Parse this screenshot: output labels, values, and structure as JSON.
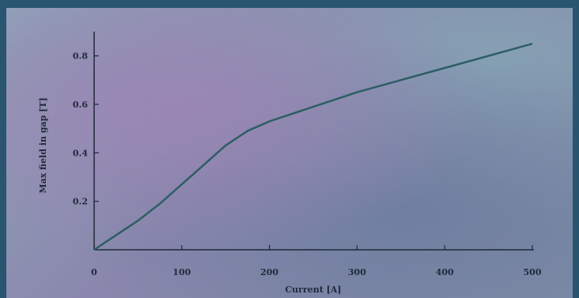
{
  "chart_data": {
    "type": "line",
    "xlabel": "Current [A]",
    "ylabel": "Max field in gap [T]",
    "xlim": [
      0,
      500
    ],
    "ylim": [
      0,
      0.9
    ],
    "x_ticks": [
      "0",
      "100",
      "200",
      "300",
      "400",
      "500"
    ],
    "y_ticks": [
      "0.2",
      "0.4",
      "0.6",
      "0.8"
    ],
    "series": [
      {
        "x": [
          0,
          25,
          50,
          75,
          100,
          125,
          150,
          175,
          200,
          250,
          300,
          350,
          400,
          450,
          500
        ],
        "y": [
          0.0,
          0.06,
          0.12,
          0.19,
          0.27,
          0.35,
          0.43,
          0.49,
          0.53,
          0.59,
          0.65,
          0.7,
          0.75,
          0.8,
          0.85
        ]
      }
    ],
    "colors": {
      "line": "#2c5e64",
      "axis": "#1f2a3a"
    }
  }
}
